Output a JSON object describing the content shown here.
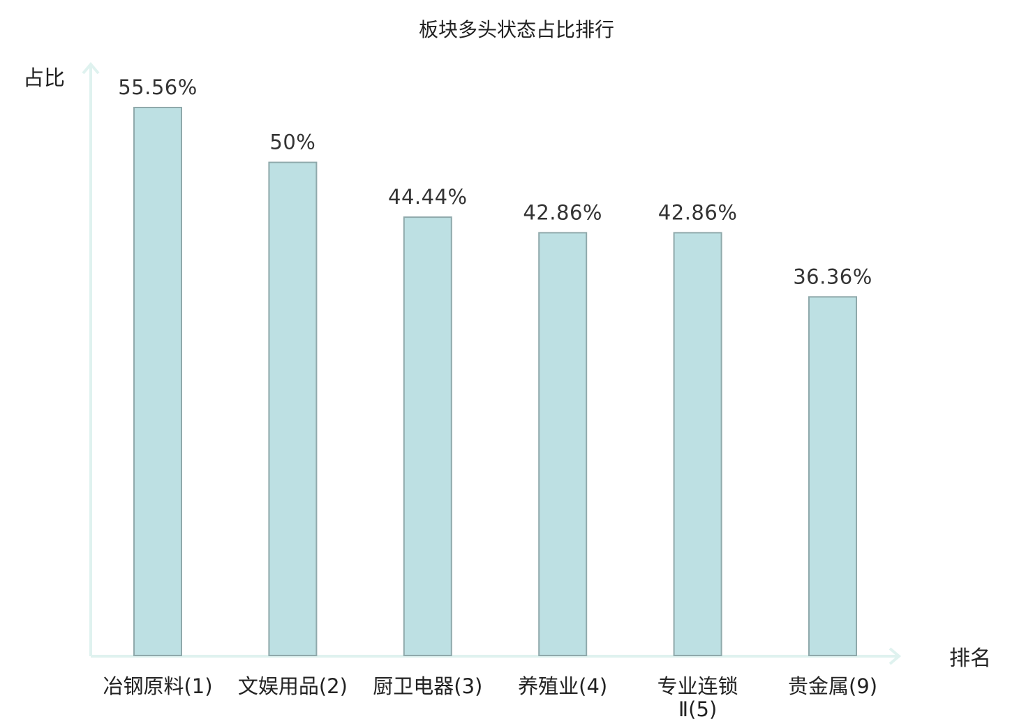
{
  "chart_data": {
    "type": "bar",
    "title": "板块多头状态占比排行",
    "ylabel": "占比",
    "xlabel": "排名",
    "categories": [
      {
        "name": "冶钢原料",
        "rank": "(1)",
        "highlight": false
      },
      {
        "name": "文娱用品",
        "rank": "(2)",
        "highlight": false
      },
      {
        "name": "厨卫电器",
        "rank": "(3)",
        "highlight": false
      },
      {
        "name": "养殖业",
        "rank": "(4)",
        "highlight": false
      },
      {
        "name": "专业连锁",
        "name_line2": "Ⅱ(5)",
        "rank": "",
        "highlight": false
      },
      {
        "name": "贵金属",
        "rank": "(9)",
        "highlight": true
      }
    ],
    "values": [
      55.56,
      50,
      44.44,
      42.86,
      42.86,
      36.36
    ],
    "value_labels": [
      "55.56%",
      "50%",
      "44.44%",
      "42.86%",
      "42.86%",
      "36.36%"
    ],
    "ylim": [
      0,
      60
    ],
    "grid": false,
    "legend": "none"
  },
  "colors": {
    "bar_fill": "#bde0e3",
    "bar_stroke": "#8fa9ab",
    "axis": "#dff2ef",
    "highlight_label": "#e02020",
    "text": "#222222",
    "value_text": "#333333"
  }
}
